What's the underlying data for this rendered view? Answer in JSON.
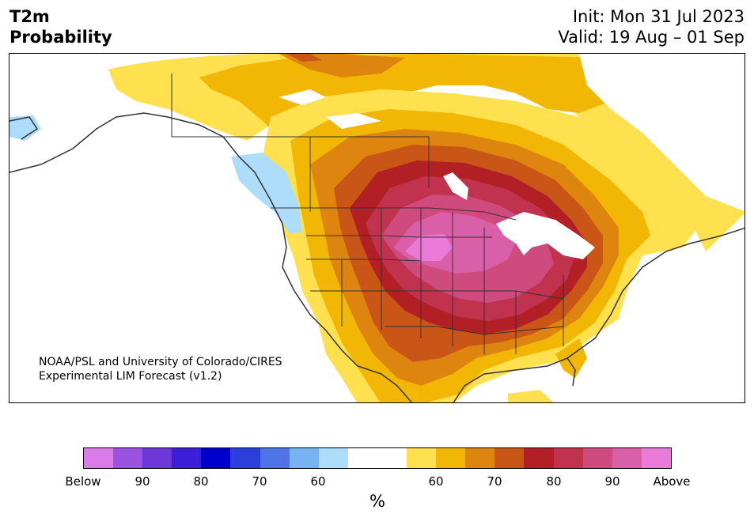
{
  "title": {
    "left_line1": "T2m",
    "left_line2": "Probability",
    "init": "Init: Mon 31 Jul 2023",
    "valid": "Valid: 19 Aug – 01 Sep"
  },
  "credit": {
    "line1": "NOAA/PSL and University of Colorado/CIRES",
    "line2": "Experimental LIM Forecast (v1.2)"
  },
  "colorbar": {
    "colors": [
      "#d97be8",
      "#9a52e0",
      "#6e38d8",
      "#3b1fd6",
      "#0000cc",
      "#2a3fdc",
      "#4f74e8",
      "#79b2f2",
      "#aedcfb",
      "#ffffff",
      "#ffffff",
      "#ffe04f",
      "#f2b705",
      "#de8510",
      "#c95517",
      "#b21f25",
      "#c0324d",
      "#cf4a7d",
      "#d95fa8",
      "#e97ad8"
    ],
    "tick_labels": [
      "Below",
      "90",
      "80",
      "70",
      "60",
      "60",
      "70",
      "80",
      "90",
      "Above"
    ],
    "units_label": "%"
  },
  "map": {
    "region": "North America",
    "palette": {
      "p60": "#ffe04f",
      "p65": "#f2b705",
      "p70": "#de8510",
      "p75": "#c95517",
      "p80": "#b21f25",
      "p85": "#c0324d",
      "p90": "#cf4a7d",
      "p95": "#d95fa8",
      "above": "#e97ad8",
      "below60": "#aedcfb",
      "coast": "#333333"
    }
  }
}
